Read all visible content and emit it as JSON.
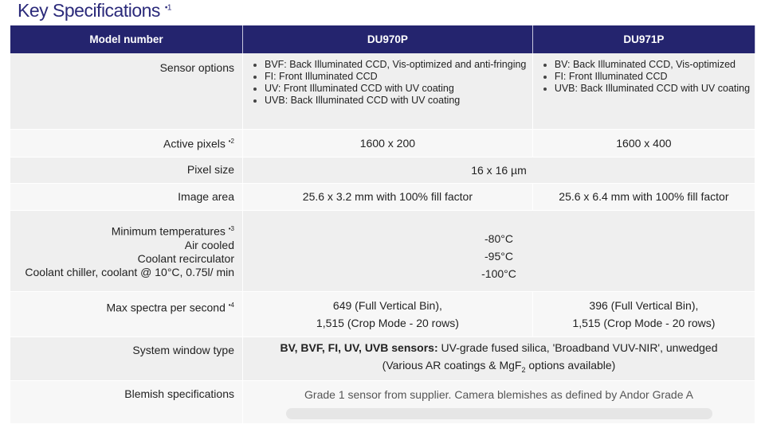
{
  "title": "Key Specifications",
  "title_note": "•1",
  "header": [
    "Model number",
    "DU970P",
    "DU971P"
  ],
  "rows": {
    "sensor": {
      "label": "Sensor options",
      "du970p": [
        "BVF: Back Illuminated CCD, Vis-optimized and anti-fringing",
        "FI: Front Illuminated CCD",
        "UV: Front Illuminated CCD with UV coating",
        "UVB: Back Illuminated CCD with UV coating"
      ],
      "du971p": [
        "BV: Back Illuminated CCD, Vis-optimized",
        "FI: Front Illuminated CCD",
        "UVB: Back Illuminated CCD with UV coating"
      ]
    },
    "active": {
      "label": "Active pixels",
      "note": "•2",
      "du970p": "1600 x 200",
      "du971p": "1600 x 400"
    },
    "pixel": {
      "label": "Pixel size",
      "value": "16 x 16 µm"
    },
    "image": {
      "label": "Image area",
      "du970p": "25.6 x 3.2 mm with 100% fill factor",
      "du971p": "25.6 x 6.4 mm with 100% fill factor"
    },
    "temp": {
      "label": "Minimum temperatures",
      "note": "•3",
      "sub": [
        "Air cooled",
        "Coolant recirculator",
        "Coolant chiller, coolant @ 10°C, 0.75l/ min"
      ],
      "values": [
        "-80°C",
        "-95°C",
        "-100°C"
      ]
    },
    "spectra": {
      "label": "Max spectra per second",
      "note": "•4",
      "du970p": [
        "649 (Full Vertical Bin),",
        "1,515 (Crop Mode - 20 rows)"
      ],
      "du971p": [
        "396 (Full Vertical Bin),",
        "1,515 (Crop Mode - 20 rows)"
      ]
    },
    "window": {
      "label": "System window type",
      "bold": "BV, BVF, FI, UV, UVB sensors:",
      "text": " UV-grade fused silica, 'Broadband VUV-NIR', unwedged",
      "line2a": "(Various AR coatings & MgF",
      "line2sub": "2",
      "line2b": " options available)"
    },
    "blemish": {
      "label": "Blemish specifications",
      "value": "Grade 1 sensor from supplier. Camera blemishes as defined by Andor Grade A"
    }
  }
}
